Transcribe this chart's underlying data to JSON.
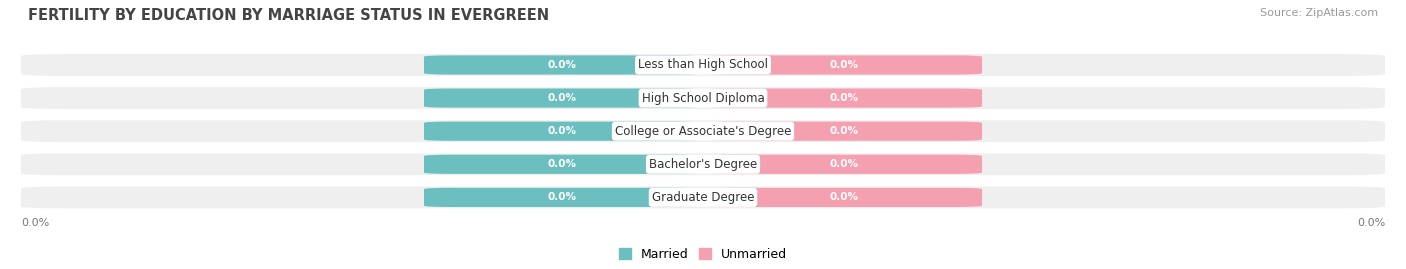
{
  "title": "FERTILITY BY EDUCATION BY MARRIAGE STATUS IN EVERGREEN",
  "source": "Source: ZipAtlas.com",
  "categories": [
    "Less than High School",
    "High School Diploma",
    "College or Associate's Degree",
    "Bachelor's Degree",
    "Graduate Degree"
  ],
  "married_values": [
    0.0,
    0.0,
    0.0,
    0.0,
    0.0
  ],
  "unmarried_values": [
    0.0,
    0.0,
    0.0,
    0.0,
    0.0
  ],
  "married_color": "#6BBFBF",
  "unmarried_color": "#F4A0B0",
  "row_bg_color": "#EFEFEF",
  "label_color": "#ffffff",
  "category_label_color": "#333333",
  "title_color": "#444444",
  "source_color": "#999999",
  "x_left_label": "0.0%",
  "x_right_label": "0.0%",
  "background_color": "#ffffff",
  "title_fontsize": 10.5,
  "source_fontsize": 8,
  "bar_label_fontsize": 7.5,
  "category_fontsize": 8.5,
  "legend_fontsize": 9,
  "axis_label_fontsize": 8
}
